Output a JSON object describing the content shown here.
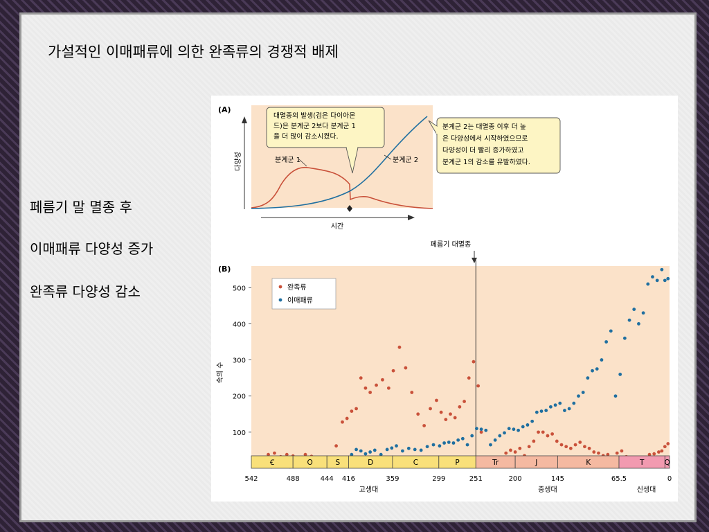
{
  "slide": {
    "title": "가설적인 이매패류에 의한 완족류의 경쟁적 배제",
    "bullets": [
      "페름기 말 멸종 후",
      "이매패류 다양성 증가",
      "완족류 다양성 감소"
    ]
  },
  "chart_data": [
    {
      "type": "line",
      "panel_label": "(A)",
      "ylabel": "다양성",
      "xlabel": "시간",
      "clade1_label": "분계군 1",
      "clade2_label": "분계군 2",
      "callout1": [
        "대멸종의 발생(검은 다이아몬",
        "드)은 분계군 2보다 분계군 1",
        "을 더 많이 감소시켰다."
      ],
      "callout2": [
        "분계군 2는 대멸종 이후 더 높",
        "은 다양성에서 시작하였으므로",
        "다양성이 더 빨리 증가하였고",
        "분계군 1의 감소를 유발하였다."
      ]
    },
    {
      "type": "scatter",
      "panel_label": "(B)",
      "ylabel": "속의 수",
      "xlabel": "",
      "event_label": "페름기 대멸종",
      "event_x": 251,
      "xlim": [
        542,
        0
      ],
      "ylim": [
        0,
        560
      ],
      "y_ticks": [
        100,
        200,
        300,
        400,
        500
      ],
      "x_ticks": [
        "542",
        "488",
        "444",
        "416",
        "359",
        "299",
        "251",
        "200",
        "145",
        "65.5",
        "0"
      ],
      "x_tick_values": [
        542,
        488,
        444,
        416,
        359,
        299,
        251,
        200,
        145,
        65.5,
        0
      ],
      "periods": [
        {
          "label": "Ꞓ",
          "start": 542,
          "end": 488,
          "color": "#f9e07a"
        },
        {
          "label": "O",
          "start": 488,
          "end": 444,
          "color": "#f9e07a"
        },
        {
          "label": "S",
          "start": 444,
          "end": 416,
          "color": "#f9e07a"
        },
        {
          "label": "D",
          "start": 416,
          "end": 359,
          "color": "#f9e07a"
        },
        {
          "label": "C",
          "start": 359,
          "end": 299,
          "color": "#f9e07a"
        },
        {
          "label": "P",
          "start": 299,
          "end": 251,
          "color": "#f9e07a"
        },
        {
          "label": "Tr",
          "start": 251,
          "end": 200,
          "color": "#f5b9a1"
        },
        {
          "label": "J",
          "start": 200,
          "end": 145,
          "color": "#f5b9a1"
        },
        {
          "label": "K",
          "start": 145,
          "end": 65.5,
          "color": "#f5b9a1"
        },
        {
          "label": "T",
          "start": 65.5,
          "end": 6,
          "color": "#f29ab0"
        },
        {
          "label": "Q",
          "start": 6,
          "end": 0,
          "color": "#f29ab0"
        }
      ],
      "eras": [
        {
          "label": "고생대",
          "x": 390
        },
        {
          "label": "중생대",
          "x": 158
        },
        {
          "label": "신생대",
          "x": 30
        }
      ],
      "series": [
        {
          "name": "완족류",
          "color": "#c9513a",
          "x": [
            538,
            530,
            520,
            512,
            504,
            496,
            488,
            480,
            472,
            464,
            456,
            448,
            440,
            432,
            424,
            418,
            412,
            406,
            400,
            394,
            388,
            380,
            372,
            364,
            358,
            350,
            342,
            334,
            326,
            318,
            310,
            302,
            296,
            290,
            284,
            278,
            272,
            266,
            260,
            254,
            248,
            244,
            240,
            236,
            230,
            224,
            218,
            212,
            206,
            200,
            194,
            188,
            182,
            176,
            170,
            164,
            158,
            152,
            146,
            140,
            134,
            128,
            122,
            116,
            110,
            104,
            98,
            92,
            86,
            80,
            74,
            68,
            62,
            56,
            50,
            44,
            38,
            32,
            26,
            20,
            14,
            10,
            6,
            2
          ],
          "y": [
            18,
            28,
            38,
            42,
            32,
            38,
            34,
            28,
            38,
            33,
            28,
            26,
            18,
            62,
            128,
            138,
            158,
            165,
            250,
            222,
            210,
            230,
            245,
            222,
            270,
            335,
            278,
            210,
            150,
            118,
            165,
            188,
            155,
            135,
            150,
            140,
            170,
            185,
            250,
            295,
            228,
            100,
            25,
            12,
            10,
            20,
            30,
            42,
            50,
            45,
            55,
            35,
            60,
            75,
            100,
            100,
            90,
            95,
            75,
            65,
            60,
            55,
            65,
            72,
            60,
            55,
            45,
            42,
            35,
            38,
            30,
            42,
            48,
            32,
            25,
            22,
            25,
            30,
            38,
            40,
            45,
            48,
            60,
            68
          ]
        },
        {
          "name": "이매패류",
          "color": "#1f6fa0",
          "x": [
            538,
            532,
            524,
            516,
            508,
            500,
            492,
            484,
            476,
            468,
            460,
            452,
            446,
            440,
            432,
            424,
            418,
            412,
            406,
            400,
            394,
            388,
            382,
            374,
            366,
            360,
            354,
            346,
            338,
            330,
            322,
            314,
            306,
            298,
            292,
            286,
            280,
            274,
            268,
            262,
            256,
            250,
            244,
            238,
            232,
            226,
            220,
            214,
            208,
            202,
            196,
            190,
            184,
            178,
            172,
            166,
            160,
            154,
            148,
            142,
            136,
            130,
            124,
            118,
            112,
            106,
            100,
            94,
            88,
            82,
            76,
            70,
            64,
            58,
            52,
            46,
            40,
            34,
            28,
            22,
            16,
            10,
            6,
            2
          ],
          "y": [
            5,
            6,
            5,
            4,
            5,
            5,
            4,
            5,
            5,
            4,
            5,
            6,
            7,
            10,
            18,
            25,
            30,
            38,
            52,
            48,
            40,
            45,
            50,
            38,
            52,
            56,
            62,
            48,
            55,
            52,
            50,
            60,
            65,
            62,
            70,
            72,
            70,
            78,
            82,
            65,
            90,
            110,
            108,
            105,
            65,
            78,
            90,
            98,
            110,
            108,
            105,
            115,
            120,
            130,
            155,
            158,
            160,
            170,
            175,
            180,
            160,
            165,
            180,
            200,
            210,
            250,
            270,
            275,
            300,
            350,
            380,
            200,
            260,
            360,
            410,
            440,
            400,
            430,
            510,
            530,
            520,
            550,
            520,
            525
          ]
        }
      ]
    }
  ]
}
